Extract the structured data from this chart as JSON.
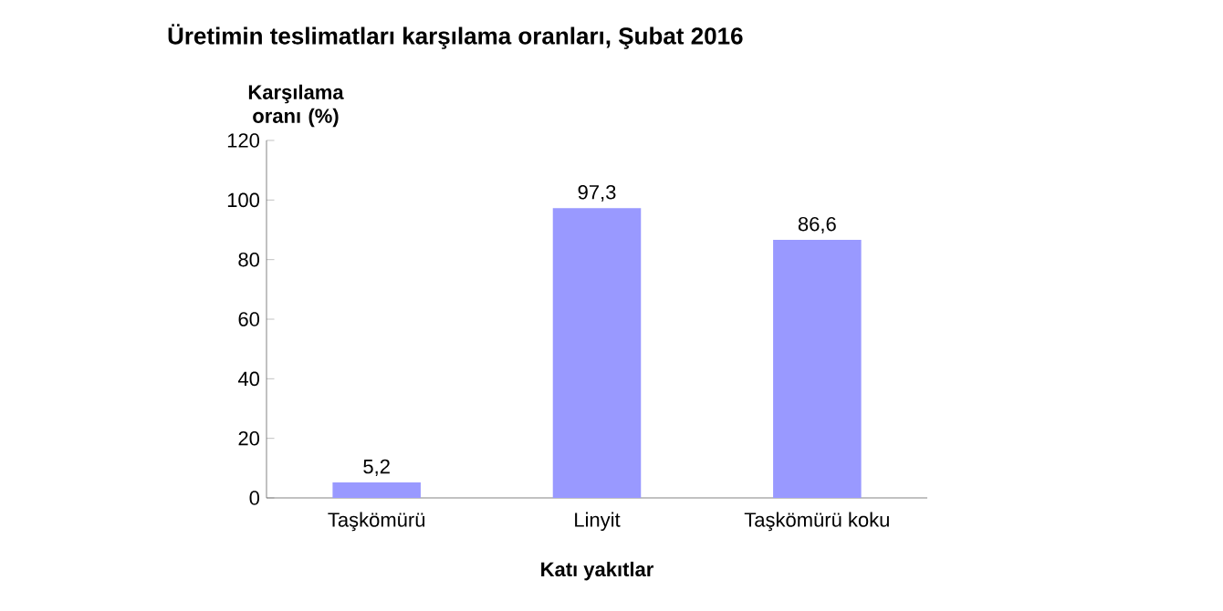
{
  "chart_data": {
    "type": "bar",
    "title": "Üretimin teslimatları karşılama oranları, Şubat 2016",
    "ylabel": "Karşılama oranı (%)",
    "xlabel": "Katı yakıtlar",
    "categories": [
      "Taşkömürü",
      "Linyit",
      "Taşkömürü koku"
    ],
    "values": [
      5.2,
      97.3,
      86.6
    ],
    "value_labels": [
      "5,2",
      "97,3",
      "86,6"
    ],
    "color": "#9999ff",
    "ylim": [
      0,
      120
    ],
    "yticks": [
      0,
      20,
      40,
      60,
      80,
      100,
      120
    ],
    "grid": false
  }
}
